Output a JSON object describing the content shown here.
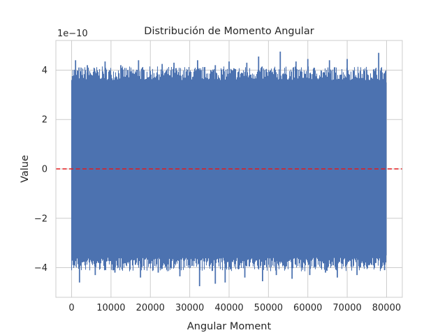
{
  "chart_data": {
    "type": "line",
    "title": "Distribución de Momento Angular",
    "xlabel": "Angular Moment",
    "ylabel": "Value",
    "y_offset_label": "1e−10",
    "xlim": [
      -4000,
      84000
    ],
    "ylim": [
      -5.2,
      5.2
    ],
    "y_scale_factor": 1e-10,
    "x_ticks": [
      0,
      10000,
      20000,
      30000,
      40000,
      50000,
      60000,
      70000,
      80000
    ],
    "x_tick_labels": [
      "0",
      "10000",
      "20000",
      "30000",
      "40000",
      "50000",
      "60000",
      "70000",
      "80000"
    ],
    "y_ticks": [
      -4,
      -2,
      0,
      2,
      4
    ],
    "y_tick_labels": [
      "−4",
      "−2",
      "0",
      "2",
      "4"
    ],
    "grid": true,
    "series": [
      {
        "color": "#4c72b0",
        "x_range": [
          0,
          80000
        ],
        "band": [
          -3.5,
          3.5
        ],
        "peaks_x": [
          1000,
          4000,
          8500,
          12500,
          17000,
          23000,
          26000,
          32000,
          36500,
          40000,
          44500,
          47500,
          53000,
          57000,
          60000,
          65500,
          70000,
          78000
        ],
        "peaks_y": [
          4.4,
          4.2,
          4.35,
          4.2,
          4.4,
          4.25,
          4.3,
          4.4,
          4.2,
          4.35,
          4.3,
          4.55,
          4.75,
          4.35,
          4.45,
          4.4,
          4.45,
          4.7
        ],
        "troughs_x": [
          2000,
          6000,
          11000,
          17500,
          22000,
          27500,
          32500,
          36500,
          39000,
          44000,
          48500,
          52000,
          56000,
          60500,
          64500,
          67500,
          72500,
          79500
        ],
        "troughs_y": [
          -4.6,
          -4.3,
          -4.2,
          -4.4,
          -4.2,
          -4.35,
          -4.75,
          -4.65,
          -4.6,
          -4.4,
          -4.55,
          -4.3,
          -4.45,
          -4.3,
          -4.2,
          -4.4,
          -4.3,
          -4.1
        ]
      }
    ],
    "reference_lines": [
      {
        "orientation": "horizontal",
        "y": 0,
        "color": "#e41a1c",
        "style": "dashed"
      }
    ]
  }
}
